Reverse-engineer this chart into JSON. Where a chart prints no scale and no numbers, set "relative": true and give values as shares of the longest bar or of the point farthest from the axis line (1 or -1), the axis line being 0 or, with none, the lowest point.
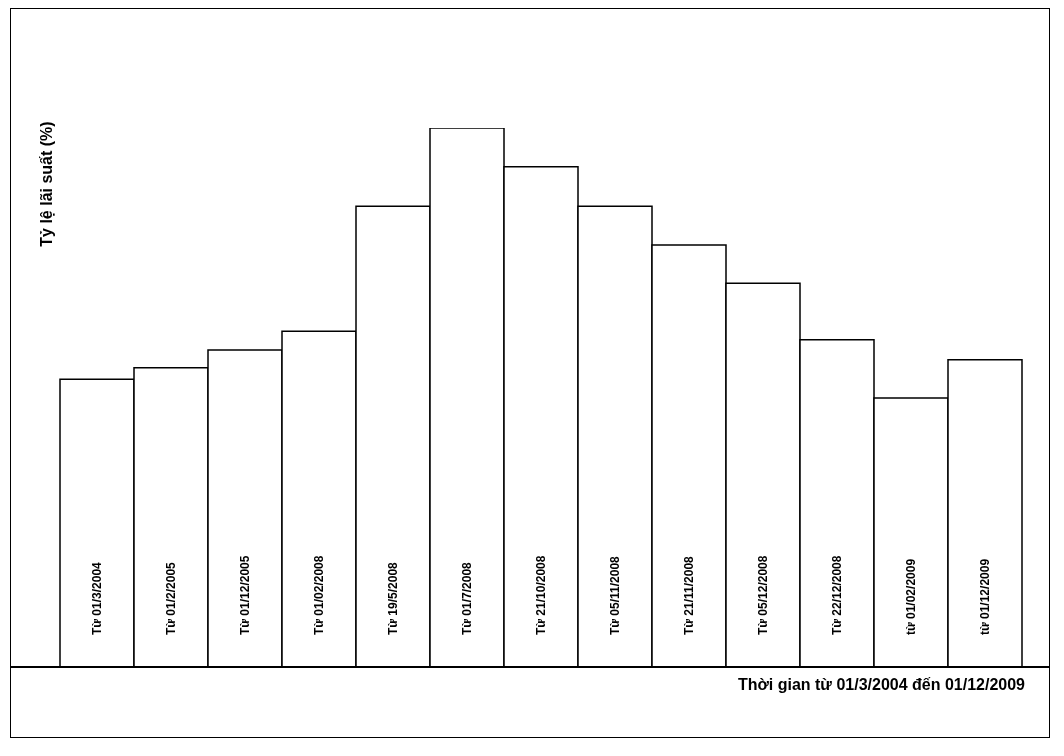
{
  "chart_data": {
    "type": "bar",
    "xlabel": "Thời gian từ 01/3/2004 đến 01/12/2009",
    "ylabel": "Tỷ lệ lãi suất (%)",
    "categories": [
      "Từ 01/3/2004",
      "Từ 01/2/2005",
      "Từ 01/12/2005",
      "Từ 01/02/2008",
      "Từ 19/5/2008",
      "Từ 01/7/2008",
      "Từ 21/10/2008",
      "Từ 05/11/2008",
      "Từ 21/11/2008",
      "Từ 05/12/2008",
      "Từ 22/12/2008",
      "từ 01/02/2009",
      "từ 01/12/2009"
    ],
    "values": [
      0.534,
      0.555,
      0.588,
      0.623,
      0.855,
      1,
      0.928,
      0.855,
      0.783,
      0.712,
      0.607,
      0.499,
      0.57
    ],
    "relative": true,
    "color": "#ffffff"
  }
}
